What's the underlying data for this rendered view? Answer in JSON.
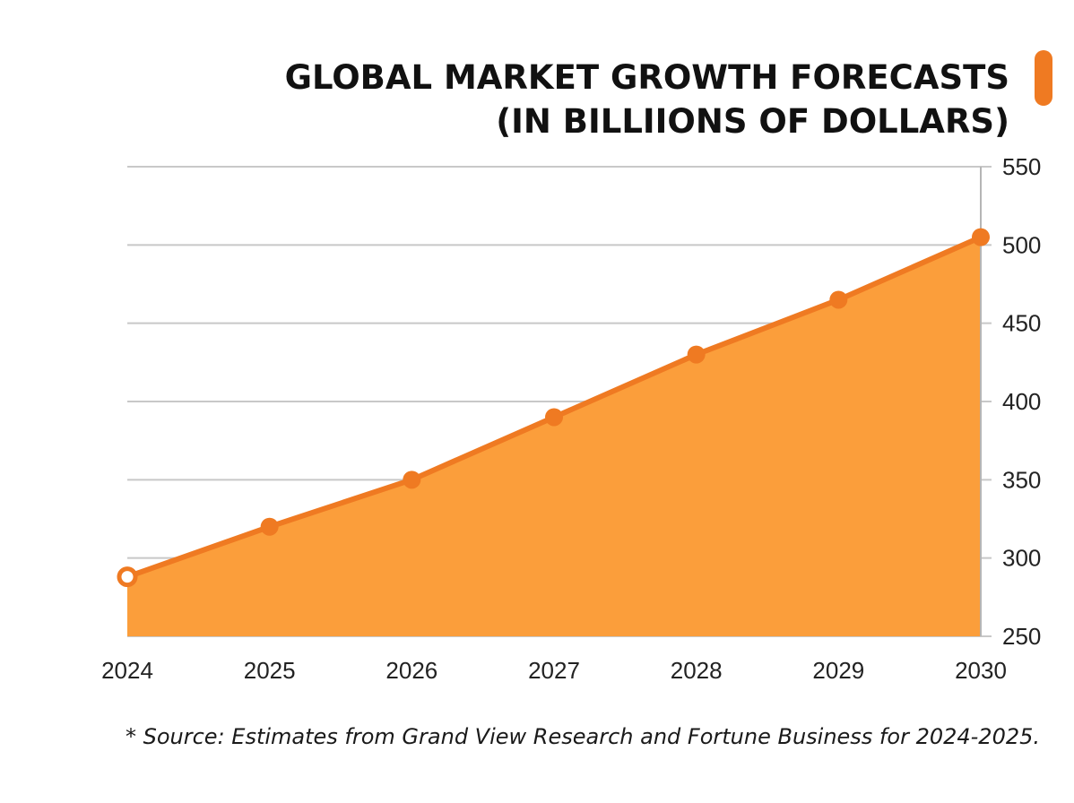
{
  "colors": {
    "line": "#ef7a22",
    "area": "#fb9e3b",
    "grid": "#c8c8c8",
    "axis": "#b5b5b5",
    "accent_tab": "#ef7a22"
  },
  "chart_data": {
    "type": "area",
    "title_lines": [
      "GLOBAL MARKET GROWTH FORECASTS",
      "(IN BILLIIONS OF DOLLARS)"
    ],
    "x": [
      "2024",
      "2025",
      "2026",
      "2027",
      "2028",
      "2029",
      "2030"
    ],
    "series": [
      {
        "values": [
          288,
          320,
          350,
          390,
          430,
          465,
          505
        ]
      }
    ],
    "ylim": [
      250,
      550
    ],
    "yticks": [
      250,
      300,
      350,
      400,
      450,
      500,
      550
    ],
    "y_axis_side": "right",
    "grid": true,
    "xlabel": "",
    "ylabel": "",
    "source_note": "* Source: Estimates from Grand View Research and Fortune Business for 2024-2025."
  }
}
